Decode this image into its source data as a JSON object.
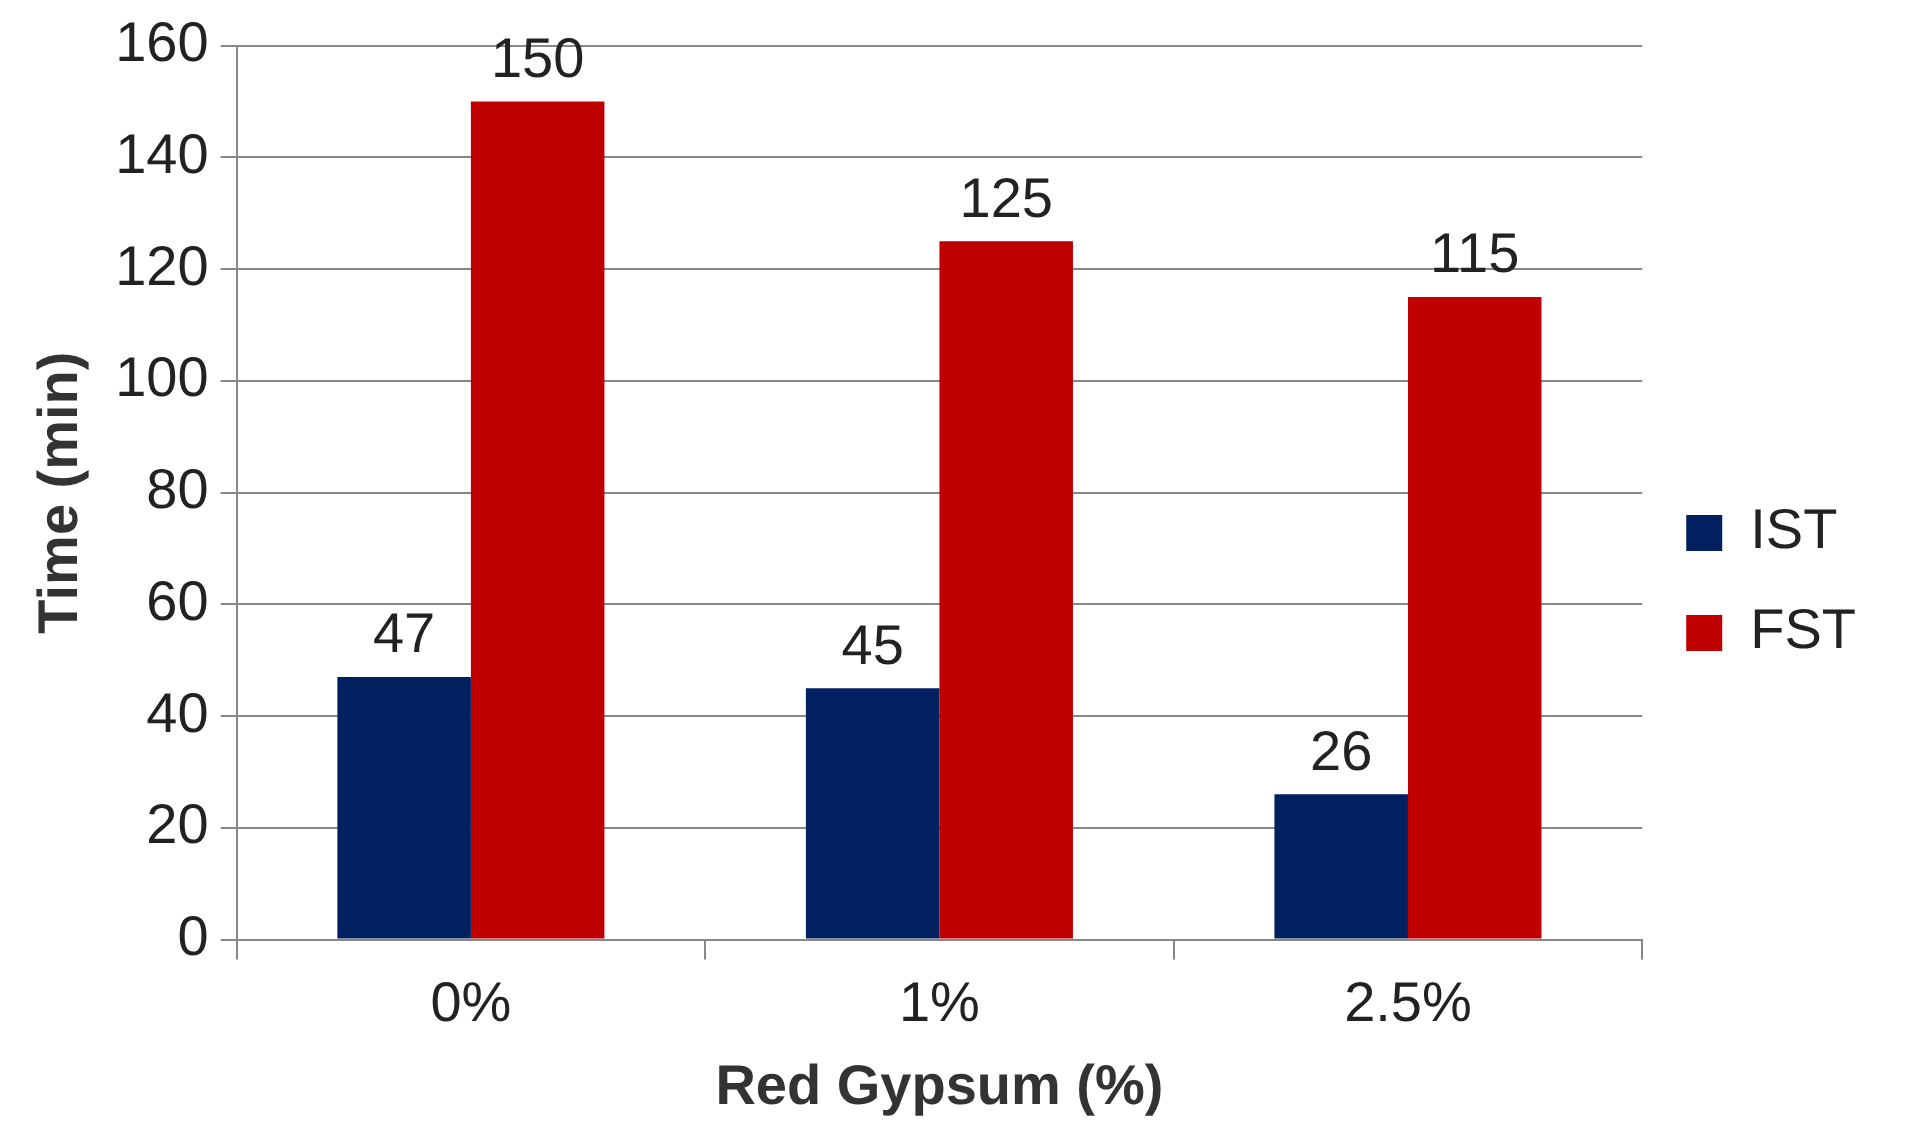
{
  "chart_data": {
    "type": "bar",
    "xlabel": "Red Gypsum (%)",
    "ylabel": "Time (min)",
    "categories": [
      "0%",
      "1%",
      "2.5%"
    ],
    "series": [
      {
        "name": "IST",
        "color": "#002060",
        "values": [
          47,
          45,
          26
        ]
      },
      {
        "name": "FST",
        "color": "#c00000",
        "values": [
          150,
          125,
          115
        ]
      }
    ],
    "ylim": [
      0,
      160
    ],
    "yticks": [
      0,
      20,
      40,
      60,
      80,
      100,
      120,
      140,
      160
    ],
    "grid": "y",
    "legend": "right",
    "data_labels": true
  }
}
